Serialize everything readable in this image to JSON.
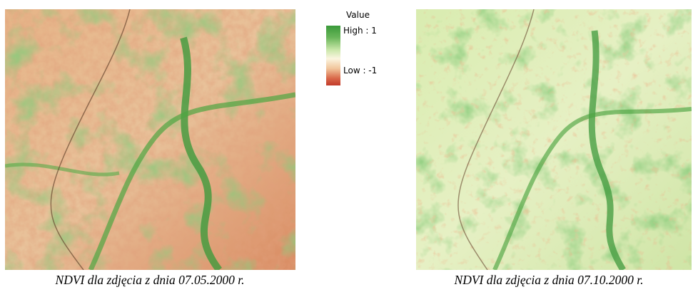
{
  "legend": {
    "title": "Value",
    "high_label": "High : 1",
    "low_label": "Low : -1",
    "high_color": "#3a9a3a",
    "mid_color": "#fbf5e0",
    "low_color": "#c23b2a"
  },
  "panels": [
    {
      "caption": "NDVI dla zdjęcia z dnia 07.05.2000 r."
    },
    {
      "caption": "NDVI dla zdjęcia z dnia 07.10.2000 r."
    }
  ]
}
